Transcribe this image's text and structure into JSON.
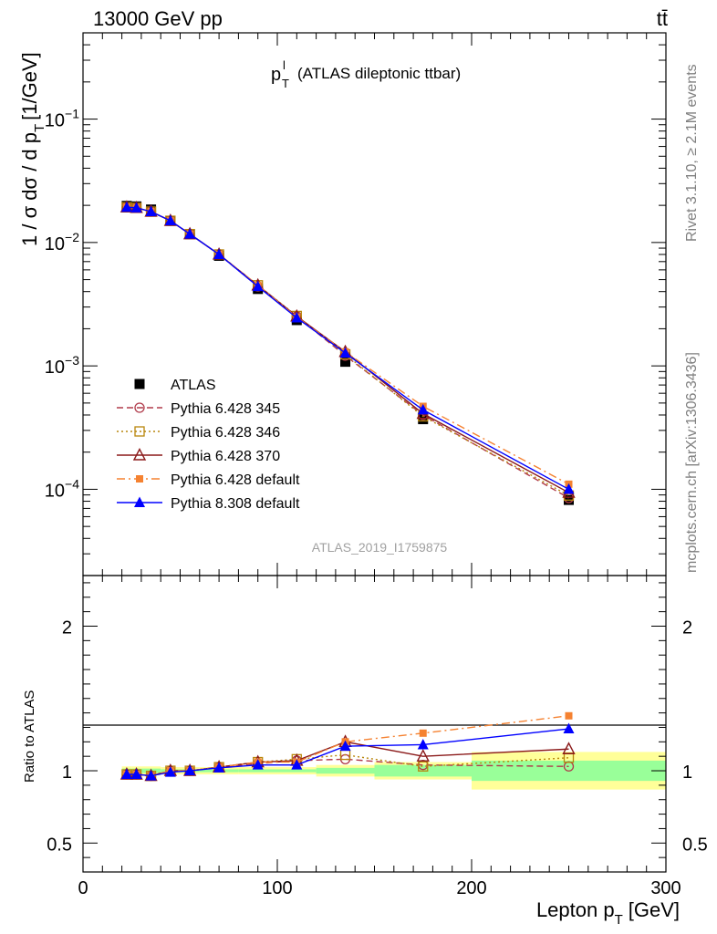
{
  "header": {
    "energy_label": "13000 GeV pp",
    "process_label": "tt̄"
  },
  "side_labels": {
    "rivet": "Rivet 3.1.10, ≥ 2.1M events",
    "mcplots": "mcplots.cern.ch [arXiv:1306.3436]"
  },
  "plot_title": {
    "symbol_main": "p",
    "symbol_sup": "l",
    "symbol_sub": "T",
    "rest": "(ATLAS dileptonic ttbar)"
  },
  "watermark": "ATLAS_2019_I1759875",
  "ylabel_main": "1 / σ  dσ / d p",
  "ylabel_sub": "T",
  "ylabel_unit": "[1/GeV]",
  "ylabel_ratio": "Ratio to ATLAS",
  "xlabel_main": "Lepton p",
  "xlabel_sub": "T",
  "xlabel_unit": "[GeV]",
  "chart_data": [
    {
      "type": "scatter",
      "panel": "main",
      "scale": "log",
      "xlim": [
        0,
        300
      ],
      "ylim": [
        2e-05,
        0.5
      ],
      "x_ticks": [
        "0",
        "100",
        "200",
        "300"
      ],
      "y_ticks": [
        "10^-4",
        "10^-3",
        "10^-2",
        "10^-1"
      ],
      "x": [
        22.5,
        27.5,
        35,
        45,
        55,
        70,
        90,
        110,
        135,
        175,
        250
      ],
      "legend_placement": "lower-left",
      "series": [
        {
          "name": "ATLAS",
          "color": "#000000",
          "marker": "filled-square",
          "line": "none",
          "values": [
            0.0198,
            0.0196,
            0.0185,
            0.015,
            0.0117,
            0.0078,
            0.0042,
            0.00235,
            0.00108,
            0.00037,
            8.2e-05
          ]
        },
        {
          "name": "Pythia 6.428 345",
          "color": "#b03a4a",
          "marker": "open-circle",
          "line": "dashed",
          "values": [
            0.0193,
            0.0191,
            0.0178,
            0.015,
            0.0117,
            0.008,
            0.0044,
            0.00252,
            0.00121,
            0.0004,
            8.5e-05
          ]
        },
        {
          "name": "Pythia 6.428 346",
          "color": "#b8860b",
          "marker": "open-square",
          "line": "dotted",
          "values": [
            0.0193,
            0.0191,
            0.0178,
            0.015,
            0.0117,
            0.008,
            0.0045,
            0.00254,
            0.00124,
            0.00039,
            8.9e-05
          ]
        },
        {
          "name": "Pythia 6.428 370",
          "color": "#8b1a1a",
          "marker": "open-triangle",
          "line": "solid",
          "values": [
            0.0193,
            0.0191,
            0.0178,
            0.015,
            0.0117,
            0.008,
            0.0045,
            0.00252,
            0.0013,
            0.00041,
            9.4e-05
          ]
        },
        {
          "name": "Pythia 6.428 default",
          "color": "#f58231",
          "marker": "filled-small-square",
          "line": "dashdot",
          "values": [
            0.0193,
            0.0191,
            0.0178,
            0.015,
            0.0117,
            0.008,
            0.0045,
            0.00248,
            0.0013,
            0.00047,
            0.00011
          ]
        },
        {
          "name": "Pythia 8.308 default",
          "color": "#0000ff",
          "marker": "filled-triangle",
          "line": "solid",
          "values": [
            0.0193,
            0.0191,
            0.0178,
            0.015,
            0.0117,
            0.008,
            0.0044,
            0.00245,
            0.00127,
            0.00044,
            0.0001
          ]
        }
      ]
    },
    {
      "type": "scatter",
      "panel": "ratio",
      "scale": "linear",
      "xlim": [
        0,
        300
      ],
      "ylim": [
        0.3,
        2.35
      ],
      "x_ticks": [
        "0",
        "100",
        "200",
        "300"
      ],
      "y_ticks": [
        "0.5",
        "1",
        "2"
      ],
      "x": [
        22.5,
        27.5,
        35,
        45,
        55,
        70,
        90,
        110,
        135,
        175,
        250
      ],
      "reference": 1,
      "bands": [
        {
          "x_low": 20,
          "x_high": 25,
          "inner": [
            0.985,
            1.015
          ],
          "outer": [
            0.97,
            1.03
          ]
        },
        {
          "x_low": 25,
          "x_high": 30,
          "inner": [
            0.985,
            1.015
          ],
          "outer": [
            0.97,
            1.03
          ]
        },
        {
          "x_low": 30,
          "x_high": 40,
          "inner": [
            0.985,
            1.015
          ],
          "outer": [
            0.97,
            1.03
          ]
        },
        {
          "x_low": 40,
          "x_high": 50,
          "inner": [
            0.99,
            1.01
          ],
          "outer": [
            0.975,
            1.025
          ]
        },
        {
          "x_low": 50,
          "x_high": 60,
          "inner": [
            0.99,
            1.01
          ],
          "outer": [
            0.975,
            1.025
          ]
        },
        {
          "x_low": 60,
          "x_high": 80,
          "inner": [
            0.99,
            1.01
          ],
          "outer": [
            0.975,
            1.025
          ]
        },
        {
          "x_low": 80,
          "x_high": 100,
          "inner": [
            0.99,
            1.01
          ],
          "outer": [
            0.975,
            1.025
          ]
        },
        {
          "x_low": 100,
          "x_high": 120,
          "inner": [
            0.99,
            1.01
          ],
          "outer": [
            0.975,
            1.025
          ]
        },
        {
          "x_low": 120,
          "x_high": 150,
          "inner": [
            0.98,
            1.02
          ],
          "outer": [
            0.96,
            1.04
          ]
        },
        {
          "x_low": 150,
          "x_high": 200,
          "inner": [
            0.96,
            1.04
          ],
          "outer": [
            0.94,
            1.06
          ]
        },
        {
          "x_low": 200,
          "x_high": 300,
          "inner": [
            0.93,
            1.07
          ],
          "outer": [
            0.87,
            1.13
          ]
        }
      ],
      "series": [
        {
          "name": "Pythia 6.428 345",
          "color": "#b03a4a",
          "marker": "open-circle",
          "line": "dashed",
          "values": [
            0.975,
            0.975,
            0.965,
            1.0,
            1.0,
            1.025,
            1.05,
            1.07,
            1.08,
            1.04,
            1.03
          ]
        },
        {
          "name": "Pythia 6.428 346",
          "color": "#b8860b",
          "marker": "open-square",
          "line": "dotted",
          "values": [
            0.975,
            0.975,
            0.965,
            1.0,
            1.0,
            1.025,
            1.06,
            1.08,
            1.11,
            1.03,
            1.09
          ]
        },
        {
          "name": "Pythia 6.428 370",
          "color": "#8b1a1a",
          "marker": "open-triangle",
          "line": "solid",
          "values": [
            0.975,
            0.975,
            0.965,
            1.0,
            1.0,
            1.025,
            1.06,
            1.07,
            1.2,
            1.1,
            1.15
          ]
        },
        {
          "name": "Pythia 6.428 default",
          "color": "#f58231",
          "marker": "filled-small-square",
          "line": "dashdot",
          "values": [
            0.975,
            0.975,
            0.965,
            1.0,
            1.0,
            1.025,
            1.06,
            1.06,
            1.2,
            1.26,
            1.38
          ]
        },
        {
          "name": "Pythia 8.308 default",
          "color": "#0000ff",
          "marker": "filled-triangle",
          "line": "solid",
          "values": [
            0.975,
            0.975,
            0.965,
            0.99,
            1.0,
            1.02,
            1.04,
            1.04,
            1.17,
            1.18,
            1.29
          ]
        }
      ]
    }
  ]
}
